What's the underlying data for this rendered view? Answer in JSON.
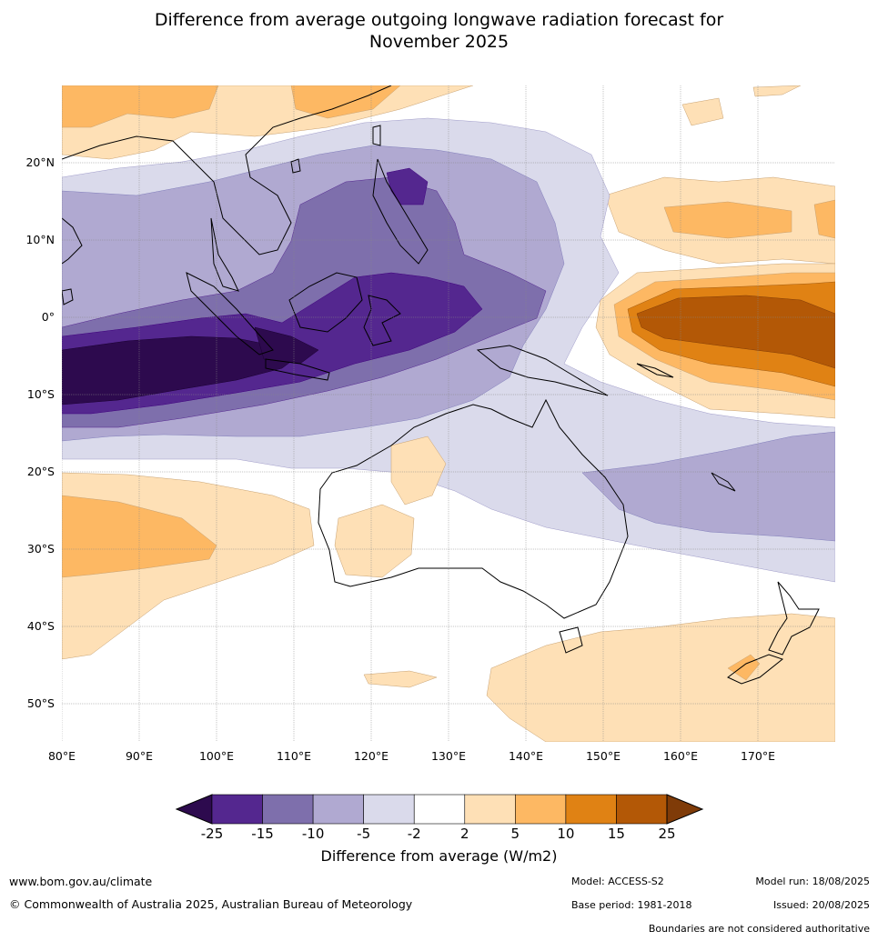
{
  "title_line1": "Difference from average outgoing longwave radiation forecast for",
  "title_line2": "November 2025",
  "lon_ticks": [
    "80°E",
    "90°E",
    "100°E",
    "110°E",
    "120°E",
    "130°E",
    "140°E",
    "150°E",
    "160°E",
    "170°E"
  ],
  "lat_ticks": [
    "20°N",
    "10°N",
    "0°",
    "10°S",
    "20°S",
    "30°S",
    "40°S",
    "50°S"
  ],
  "colorbar": {
    "label": "Difference from average (W/m2)",
    "ticks": [
      "-25",
      "-15",
      "-10",
      "-5",
      "-2",
      "2",
      "5",
      "10",
      "15",
      "25"
    ],
    "colors": [
      "#2d0a4e",
      "#54278f",
      "#7e6fac",
      "#b0a9d1",
      "#dadaeb",
      "#ffffff",
      "#fee0b6",
      "#fdb863",
      "#e08214",
      "#b35806",
      "#7f3b08"
    ]
  },
  "footer": {
    "website": "www.bom.gov.au/climate",
    "copyright": "© Commonwealth of Australia 2025, Australian Bureau of Meteorology",
    "model": "Model: ACCESS-S2",
    "base_period": "Base period: 1981-2018",
    "model_run": "Model run: 18/08/2025",
    "issued": "Issued: 20/08/2025",
    "disclaimer": "Boundaries are not considered authoritative"
  }
}
